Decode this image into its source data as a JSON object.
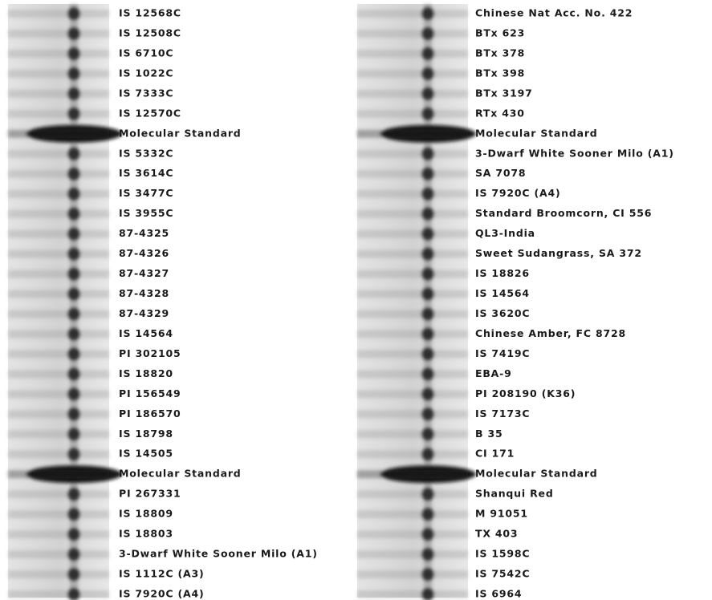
{
  "panels": [
    {
      "lanes": [
        "IS 12568C",
        "IS 12508C",
        "IS 6710C",
        "IS 1022C",
        "IS 7333C",
        "IS 12570C",
        "Molecular Standard",
        "IS 5332C",
        "IS 3614C",
        "IS 3477C",
        "IS 3955C",
        "87-4325",
        "87-4326",
        "87-4327",
        "87-4328",
        "87-4329",
        "IS 14564",
        "PI 302105",
        "IS 18820",
        "PI 156549",
        "PI 186570",
        "IS 18798",
        "IS 14505",
        "Molecular Standard",
        "PI 267331",
        "IS 18809",
        "IS 18803",
        "3-Dwarf White Sooner Milo (A1)",
        "IS 1112C (A3)",
        "IS 7920C (A4)"
      ]
    },
    {
      "lanes": [
        "Chinese Nat Acc. No. 422",
        "BTx 623",
        "BTx 378",
        "BTx 398",
        "BTx 3197",
        "RTx 430",
        "Molecular Standard",
        "3-Dwarf White Sooner Milo (A1)",
        "SA 7078",
        "IS 7920C (A4)",
        "Standard Broomcorn, CI 556",
        "QL3-India",
        "Sweet Sudangrass, SA 372",
        "IS 18826",
        "IS 14564",
        "IS 3620C",
        "Chinese Amber, FC 8728",
        "IS 7419C",
        "EBA-9",
        "PI 208190 (K36)",
        "IS 7173C",
        "B 35",
        "CI 171",
        "Molecular Standard",
        "Shanqui Red",
        "M 91051",
        "TX 403",
        "IS 1598C",
        "IS 7542C",
        "IS 6964"
      ]
    }
  ]
}
